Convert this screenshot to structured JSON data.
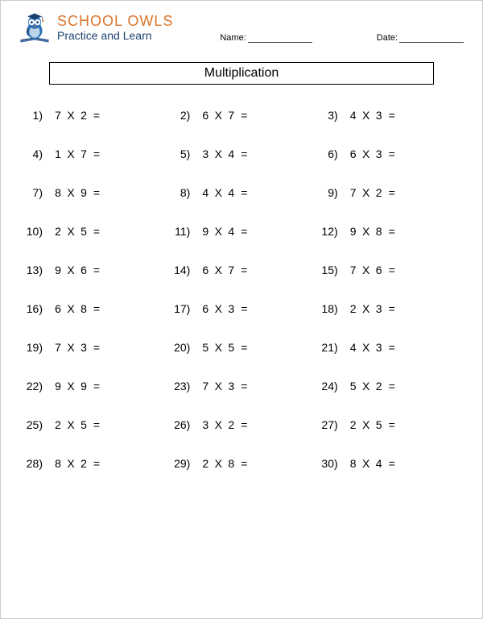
{
  "brand": {
    "name_main": "SCHOOL OWLS",
    "name_sub": "Practice and Learn",
    "colors": {
      "orange": "#d9752b",
      "blue": "#2a6fb5",
      "darkblue": "#1a3f6e",
      "book": "#4a6fa5"
    }
  },
  "fields": {
    "name_label": "Name:",
    "date_label": "Date:"
  },
  "title": "Multiplication",
  "operator": "X",
  "equals": "=",
  "problems": [
    {
      "n": 1,
      "a": 7,
      "b": 2
    },
    {
      "n": 2,
      "a": 6,
      "b": 7
    },
    {
      "n": 3,
      "a": 4,
      "b": 3
    },
    {
      "n": 4,
      "a": 1,
      "b": 7
    },
    {
      "n": 5,
      "a": 3,
      "b": 4
    },
    {
      "n": 6,
      "a": 6,
      "b": 3
    },
    {
      "n": 7,
      "a": 8,
      "b": 9
    },
    {
      "n": 8,
      "a": 4,
      "b": 4
    },
    {
      "n": 9,
      "a": 7,
      "b": 2
    },
    {
      "n": 10,
      "a": 2,
      "b": 5
    },
    {
      "n": 11,
      "a": 9,
      "b": 4
    },
    {
      "n": 12,
      "a": 9,
      "b": 8
    },
    {
      "n": 13,
      "a": 9,
      "b": 6
    },
    {
      "n": 14,
      "a": 6,
      "b": 7
    },
    {
      "n": 15,
      "a": 7,
      "b": 6
    },
    {
      "n": 16,
      "a": 6,
      "b": 8
    },
    {
      "n": 17,
      "a": 6,
      "b": 3
    },
    {
      "n": 18,
      "a": 2,
      "b": 3
    },
    {
      "n": 19,
      "a": 7,
      "b": 3
    },
    {
      "n": 20,
      "a": 5,
      "b": 5
    },
    {
      "n": 21,
      "a": 4,
      "b": 3
    },
    {
      "n": 22,
      "a": 9,
      "b": 9
    },
    {
      "n": 23,
      "a": 7,
      "b": 3
    },
    {
      "n": 24,
      "a": 5,
      "b": 2
    },
    {
      "n": 25,
      "a": 2,
      "b": 5
    },
    {
      "n": 26,
      "a": 3,
      "b": 2
    },
    {
      "n": 27,
      "a": 2,
      "b": 5
    },
    {
      "n": 28,
      "a": 8,
      "b": 2
    },
    {
      "n": 29,
      "a": 2,
      "b": 8
    },
    {
      "n": 30,
      "a": 8,
      "b": 4
    }
  ],
  "style": {
    "page_bg": "#ffffff",
    "text_color": "#000000",
    "title_fontsize": 16,
    "problem_fontsize": 14,
    "rows": 10,
    "cols": 3
  }
}
